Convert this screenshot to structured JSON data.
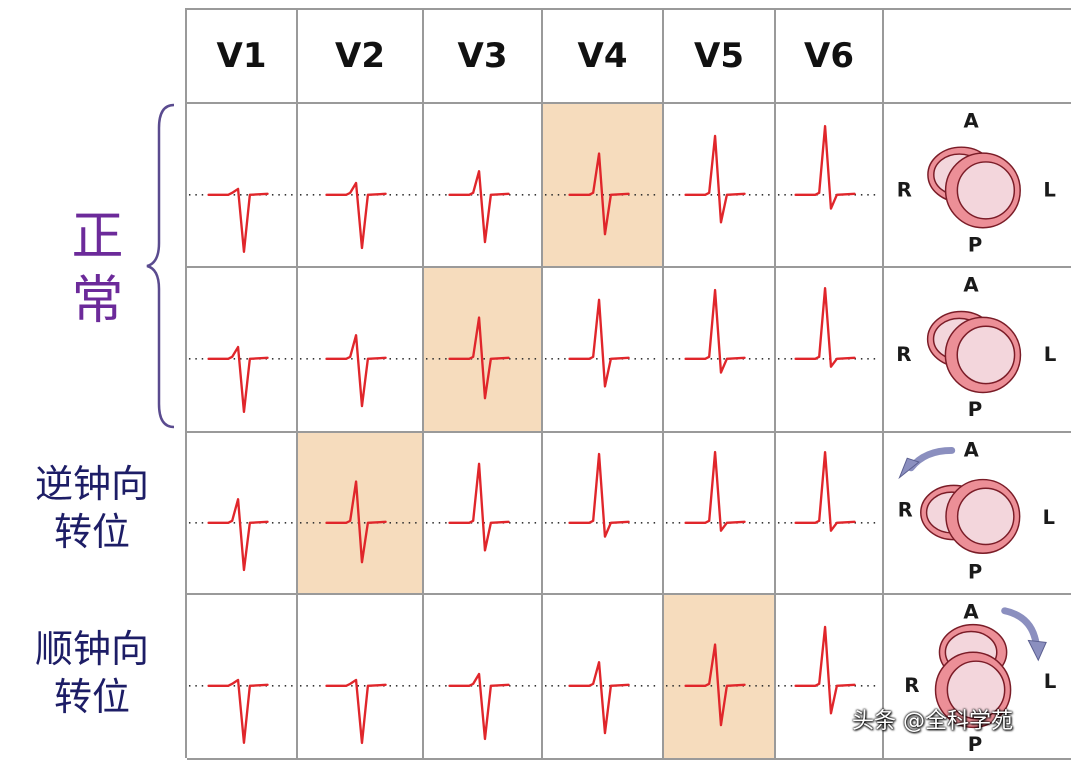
{
  "header": {
    "leads": [
      "V1",
      "V2",
      "V3",
      "V4",
      "V5",
      "V6"
    ],
    "last": ""
  },
  "rows": [
    {
      "label": "正常",
      "transition_lead": "V4",
      "rotation_arrow": "none",
      "heart_labels": {
        "top": "A",
        "left": "R",
        "right": "L",
        "bottom": "P"
      }
    },
    {
      "label": "正常",
      "transition_lead": "V3",
      "rotation_arrow": "none",
      "heart_labels": {
        "top": "A",
        "left": "R",
        "right": "L",
        "bottom": "P"
      }
    },
    {
      "label_lines": [
        "逆钟向",
        "转位"
      ],
      "transition_lead": "V2",
      "rotation_arrow": "counterclockwise",
      "heart_labels": {
        "top": "A",
        "left": "R",
        "right": "L",
        "bottom": "P"
      }
    },
    {
      "label_lines": [
        "顺钟向",
        "转位"
      ],
      "transition_lead": "V5",
      "rotation_arrow": "clockwise",
      "heart_labels": {
        "top": "A",
        "left": "R",
        "right": "L",
        "bottom": "P"
      }
    }
  ],
  "side_labels": {
    "normal": [
      "正",
      "常"
    ],
    "ccw": [
      "逆钟向",
      "转位"
    ],
    "cw": [
      "顺钟向",
      "转位"
    ]
  },
  "colors": {
    "trace": "#e0262b",
    "highlight": "#f6dcbd",
    "grid": "#9a9a9a",
    "normal_label": "#6c2a9a",
    "rotation_label": "#1d1d66",
    "heart_outer": "#ec8f97",
    "heart_inner": "#f3d6dc",
    "rotation_arrow": "#8b8fbf"
  },
  "watermark": "头条 @全科学苑"
}
